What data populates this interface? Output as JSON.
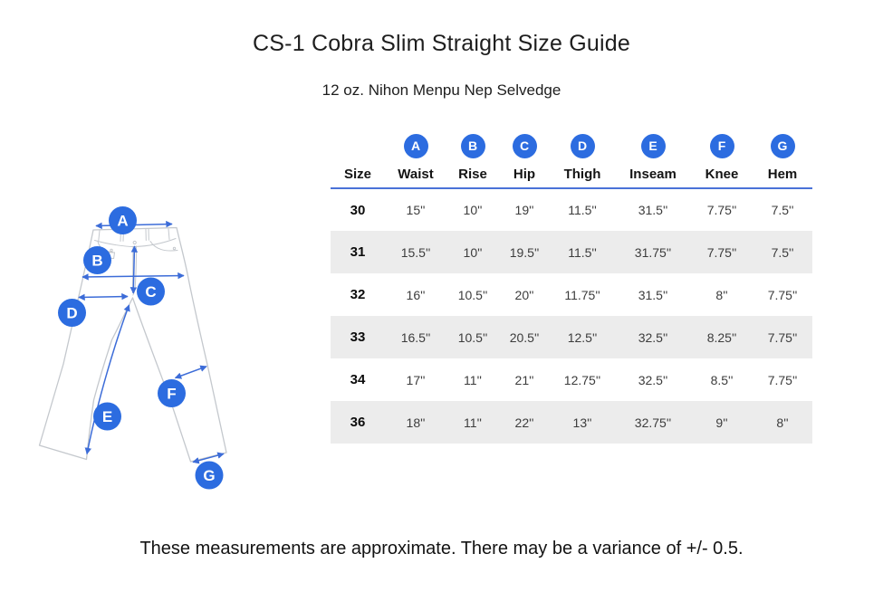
{
  "page": {
    "title": "CS-1 Cobra Slim Straight Size Guide",
    "subtitle": "12 oz. Nihon Menpu Nep Selvedge",
    "footnote": "These measurements are approximate. There may be a variance of +/- 0.5."
  },
  "colors": {
    "badge_blue": "#2c6ce0",
    "header_rule_blue": "#4a72d8",
    "row_stripe_gray": "#ececec",
    "outline_gray": "#c4c8cd",
    "arrow_blue": "#3c6cd8"
  },
  "diagram": {
    "markers": [
      {
        "letter": "A"
      },
      {
        "letter": "B"
      },
      {
        "letter": "C"
      },
      {
        "letter": "D"
      },
      {
        "letter": "E"
      },
      {
        "letter": "F"
      },
      {
        "letter": "G"
      }
    ]
  },
  "table": {
    "columns": [
      {
        "letter": "",
        "label": "Size"
      },
      {
        "letter": "A",
        "label": "Waist"
      },
      {
        "letter": "B",
        "label": "Rise"
      },
      {
        "letter": "C",
        "label": "Hip"
      },
      {
        "letter": "D",
        "label": "Thigh"
      },
      {
        "letter": "E",
        "label": "Inseam"
      },
      {
        "letter": "F",
        "label": "Knee"
      },
      {
        "letter": "G",
        "label": "Hem"
      }
    ],
    "rows": [
      {
        "size": "30",
        "values": [
          "15''",
          "10''",
          "19''",
          "11.5''",
          "31.5''",
          "7.75''",
          "7.5''"
        ]
      },
      {
        "size": "31",
        "values": [
          "15.5''",
          "10''",
          "19.5''",
          "11.5''",
          "31.75''",
          "7.75''",
          "7.5''"
        ]
      },
      {
        "size": "32",
        "values": [
          "16''",
          "10.5''",
          "20''",
          "11.75''",
          "31.5''",
          "8''",
          "7.75''"
        ]
      },
      {
        "size": "33",
        "values": [
          "16.5''",
          "10.5''",
          "20.5''",
          "12.5''",
          "32.5''",
          "8.25''",
          "7.75''"
        ]
      },
      {
        "size": "34",
        "values": [
          "17''",
          "11''",
          "21''",
          "12.75''",
          "32.5''",
          "8.5''",
          "7.75''"
        ]
      },
      {
        "size": "36",
        "values": [
          "18''",
          "11''",
          "22''",
          "13''",
          "32.75''",
          "9''",
          "8''"
        ]
      }
    ]
  }
}
